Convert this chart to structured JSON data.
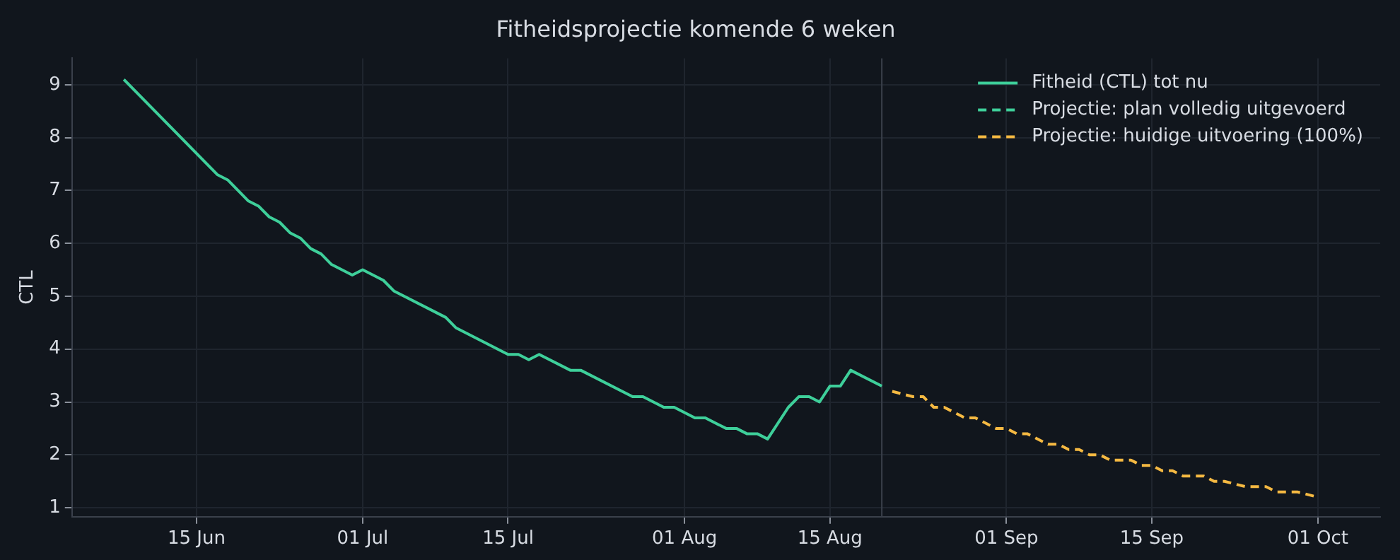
{
  "chart_data": {
    "type": "line",
    "title": "Fitheidsprojectie komende 6 weken",
    "ylabel": "CTL",
    "xlim": [
      "--06-03",
      "--10-07"
    ],
    "xticks": [
      {
        "value": "--06-15",
        "label": "15 Jun"
      },
      {
        "value": "--07-01",
        "label": "01 Jul"
      },
      {
        "value": "--07-15",
        "label": "15 Jul"
      },
      {
        "value": "--08-01",
        "label": "01 Aug"
      },
      {
        "value": "--08-15",
        "label": "15 Aug"
      },
      {
        "value": "--09-01",
        "label": "01 Sep"
      },
      {
        "value": "--09-15",
        "label": "15 Sep"
      },
      {
        "value": "--10-01",
        "label": "01 Oct"
      }
    ],
    "ylim": [
      0.83,
      9.5
    ],
    "yticks": [
      1,
      2,
      3,
      4,
      5,
      6,
      7,
      8,
      9
    ],
    "grid": true,
    "legend": "top right",
    "ref_lines": [
      {
        "axis": "x",
        "value": "--08-20",
        "color": "#3a404b"
      }
    ],
    "series": [
      {
        "name": "Fitheid (CTL) tot nu",
        "color": "#3ecf9a",
        "line_style": "solid",
        "x": [
          "--06-08",
          "--06-17",
          "--06-18",
          "--06-20",
          "--06-21",
          "--06-22",
          "--06-23",
          "--06-24",
          "--06-25",
          "--06-26",
          "--06-27",
          "--06-28",
          "--06-30",
          "--07-01",
          "--07-03",
          "--07-04",
          "--07-09",
          "--07-10",
          "--07-15",
          "--07-16",
          "--07-17",
          "--07-18",
          "--07-21",
          "--07-22",
          "--07-27",
          "--07-28",
          "--07-30",
          "--07-31",
          "--08-02",
          "--08-03",
          "--08-05",
          "--08-06",
          "--08-07",
          "--08-08",
          "--08-09",
          "--08-11",
          "--08-12",
          "--08-13",
          "--08-14",
          "--08-15",
          "--08-16",
          "--08-17",
          "--08-20"
        ],
        "values": [
          9.1,
          7.3,
          7.2,
          6.8,
          6.7,
          6.5,
          6.4,
          6.2,
          6.1,
          5.9,
          5.8,
          5.6,
          5.4,
          5.5,
          5.3,
          5.1,
          4.6,
          4.4,
          3.9,
          3.9,
          3.8,
          3.9,
          3.6,
          3.6,
          3.1,
          3.1,
          2.9,
          2.9,
          2.7,
          2.7,
          2.5,
          2.5,
          2.4,
          2.4,
          2.3,
          2.9,
          3.1,
          3.1,
          3.0,
          3.3,
          3.3,
          3.6,
          3.3
        ]
      },
      {
        "name": "Projectie: plan volledig uitgevoerd",
        "color": "#3ecf9a",
        "line_style": "dashed"
      },
      {
        "name": "Projectie: huidige uitvoering (100%)",
        "color": "#f5b942",
        "line_style": "dashed",
        "x": [
          "--08-21",
          "--08-23",
          "--08-24",
          "--08-25",
          "--08-26",
          "--08-28",
          "--08-29",
          "--08-31",
          "--09-01",
          "--09-02",
          "--09-03",
          "--09-05",
          "--09-06",
          "--09-07",
          "--09-08",
          "--09-09",
          "--09-10",
          "--09-11",
          "--09-13",
          "--09-14",
          "--09-15",
          "--09-16",
          "--09-17",
          "--09-18",
          "--09-20",
          "--09-21",
          "--09-22",
          "--09-24",
          "--09-26",
          "--09-27",
          "--09-29",
          "--10-01"
        ],
        "values": [
          3.2,
          3.1,
          3.1,
          2.9,
          2.9,
          2.7,
          2.7,
          2.5,
          2.5,
          2.4,
          2.4,
          2.2,
          2.2,
          2.1,
          2.1,
          2.0,
          2.0,
          1.9,
          1.9,
          1.8,
          1.8,
          1.7,
          1.7,
          1.6,
          1.6,
          1.5,
          1.5,
          1.4,
          1.4,
          1.3,
          1.3,
          1.2
        ]
      }
    ]
  }
}
